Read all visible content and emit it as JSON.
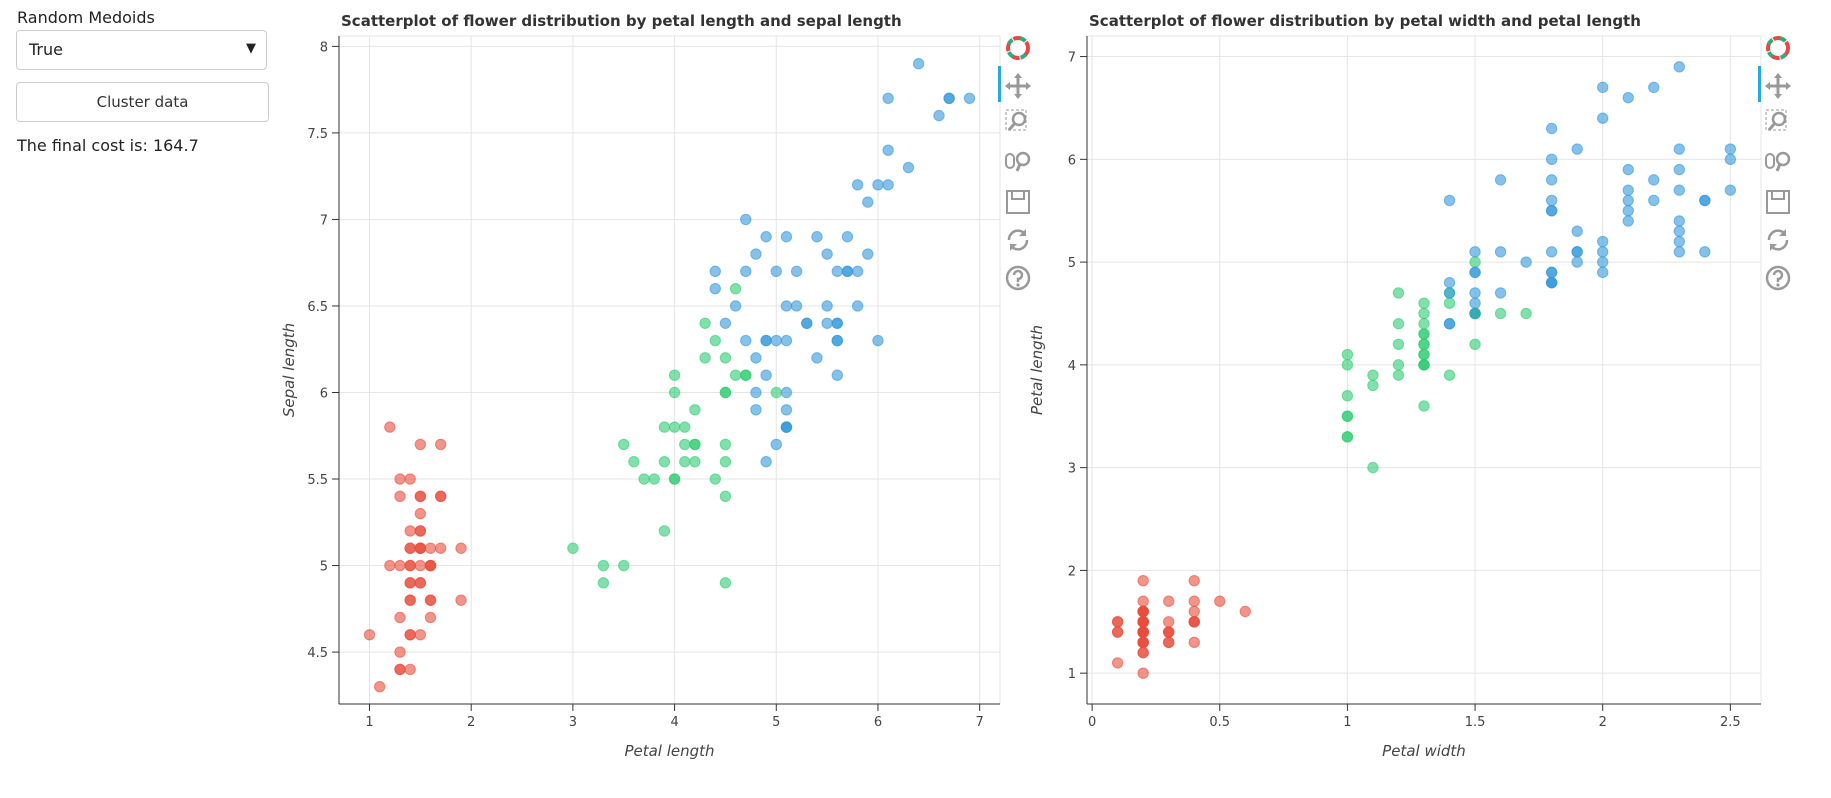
{
  "controls": {
    "select_label": "Random Medoids",
    "select_value": "True",
    "button": "Cluster data",
    "cost_text": "The final cost is: 164.7"
  },
  "chart_data": [
    {
      "type": "scatter",
      "title": "Scatterplot of flower distribution by petal length and sepal length",
      "x_label": "Petal length",
      "y_label": "Sepal length",
      "xlim": [
        0.7,
        7.2
      ],
      "ylim": [
        4.2,
        8.06
      ],
      "xticks": [
        1,
        2,
        3,
        4,
        5,
        6,
        7
      ],
      "yticks": [
        4.5,
        5,
        5.5,
        6,
        6.5,
        7,
        7.5,
        8
      ],
      "grid": true,
      "series": [
        {
          "color": "#e74c3c",
          "x": [
            1.4,
            1.4,
            1.3,
            1.5,
            1.4,
            1.7,
            1.4,
            1.5,
            1.4,
            1.5,
            1.5,
            1.6,
            1.4,
            1.1,
            1.2,
            1.5,
            1.3,
            1.4,
            1.7,
            1.5,
            1.7,
            1.5,
            1.0,
            1.7,
            1.9,
            1.6,
            1.6,
            1.5,
            1.4,
            1.6,
            1.6,
            1.5,
            1.5,
            1.4,
            1.5,
            1.2,
            1.3,
            1.4,
            1.3,
            1.5,
            1.3,
            1.3,
            1.3,
            1.6,
            1.9,
            1.4,
            1.6,
            1.4,
            1.5,
            1.4
          ],
          "y": [
            5.1,
            4.9,
            4.7,
            4.6,
            5.0,
            5.4,
            4.6,
            5.0,
            4.4,
            4.9,
            5.4,
            4.8,
            4.8,
            4.3,
            5.8,
            5.7,
            5.4,
            5.1,
            5.7,
            5.1,
            5.4,
            5.1,
            4.6,
            5.1,
            4.8,
            5.0,
            5.0,
            5.2,
            5.2,
            4.7,
            4.8,
            5.4,
            5.2,
            5.5,
            4.9,
            5.0,
            5.5,
            4.9,
            4.4,
            5.1,
            5.0,
            4.5,
            4.4,
            5.0,
            5.1,
            4.8,
            5.1,
            4.6,
            5.3,
            5.0
          ]
        },
        {
          "color": "#2ecc71",
          "x": [
            4.0,
            4.5,
            3.3,
            4.6,
            3.9,
            3.5,
            4.2,
            4.0,
            4.7,
            3.6,
            4.5,
            4.1,
            4.5,
            3.9,
            4.0,
            4.7,
            4.3,
            4.5,
            3.5,
            3.8,
            3.7,
            3.9,
            4.5,
            4.5,
            4.4,
            4.1,
            4.0,
            4.4,
            4.6,
            4.0,
            3.3,
            4.2,
            4.2,
            4.2,
            4.3,
            3.0,
            4.1,
            4.5,
            5.0
          ],
          "y": [
            5.5,
            5.7,
            4.9,
            6.6,
            5.2,
            5.0,
            5.9,
            6.0,
            6.1,
            5.6,
            5.6,
            5.8,
            6.2,
            5.6,
            6.1,
            6.1,
            6.4,
            6.0,
            5.7,
            5.5,
            5.5,
            5.8,
            5.4,
            6.0,
            6.3,
            5.6,
            5.5,
            5.5,
            6.1,
            5.8,
            5.0,
            5.6,
            5.7,
            5.7,
            6.2,
            5.1,
            5.7,
            4.9,
            6.0
          ]
        },
        {
          "color": "#3498db",
          "x": [
            4.7,
            4.5,
            4.9,
            4.6,
            4.7,
            4.4,
            4.8,
            4.9,
            4.4,
            4.8,
            5.0,
            5.1,
            4.7,
            6.0,
            5.1,
            5.9,
            5.6,
            5.8,
            6.6,
            6.3,
            5.8,
            6.1,
            5.1,
            5.3,
            5.5,
            5.0,
            5.1,
            5.3,
            5.5,
            6.7,
            6.9,
            5.7,
            4.9,
            6.7,
            4.9,
            5.7,
            6.0,
            4.8,
            4.9,
            5.6,
            5.8,
            6.1,
            6.4,
            5.6,
            5.1,
            5.6,
            6.1,
            5.6,
            5.5,
            4.8,
            5.4,
            5.6,
            5.1,
            5.1,
            5.9,
            5.7,
            5.2,
            5.0,
            5.2,
            5.4,
            5.1
          ],
          "y": [
            7.0,
            6.4,
            6.9,
            6.5,
            6.3,
            6.7,
            5.9,
            6.3,
            6.6,
            6.8,
            6.7,
            6.0,
            6.7,
            6.3,
            5.8,
            7.1,
            6.3,
            6.5,
            7.6,
            7.3,
            6.7,
            7.2,
            6.5,
            6.4,
            6.8,
            5.7,
            5.8,
            6.4,
            6.5,
            7.7,
            7.7,
            6.9,
            5.6,
            7.7,
            6.3,
            6.7,
            7.2,
            6.2,
            6.1,
            6.4,
            7.2,
            7.4,
            7.9,
            6.4,
            6.3,
            6.1,
            7.7,
            6.3,
            6.4,
            6.0,
            6.9,
            6.7,
            6.9,
            5.8,
            6.8,
            6.7,
            6.7,
            6.3,
            6.5,
            6.2,
            5.9
          ]
        }
      ]
    },
    {
      "type": "scatter",
      "title": "Scatterplot of flower distribution by petal width and petal length",
      "x_label": "Petal width",
      "y_label": "Petal length",
      "xlim": [
        -0.02,
        2.62
      ],
      "ylim": [
        0.7,
        7.2
      ],
      "xticks": [
        0,
        0.5,
        1,
        1.5,
        2,
        2.5
      ],
      "yticks": [
        1,
        2,
        3,
        4,
        5,
        6,
        7
      ],
      "grid": true,
      "series": [
        {
          "color": "#e74c3c",
          "x": [
            0.2,
            0.2,
            0.2,
            0.2,
            0.2,
            0.4,
            0.3,
            0.2,
            0.2,
            0.1,
            0.2,
            0.2,
            0.1,
            0.1,
            0.2,
            0.4,
            0.4,
            0.3,
            0.3,
            0.3,
            0.2,
            0.4,
            0.2,
            0.5,
            0.2,
            0.2,
            0.4,
            0.2,
            0.2,
            0.2,
            0.2,
            0.4,
            0.1,
            0.2,
            0.2,
            0.2,
            0.2,
            0.1,
            0.2,
            0.2,
            0.3,
            0.3,
            0.2,
            0.6,
            0.4,
            0.3,
            0.2,
            0.2,
            0.2,
            0.2
          ],
          "y": [
            1.4,
            1.4,
            1.3,
            1.5,
            1.4,
            1.7,
            1.4,
            1.5,
            1.4,
            1.5,
            1.5,
            1.6,
            1.4,
            1.1,
            1.2,
            1.5,
            1.3,
            1.4,
            1.7,
            1.5,
            1.7,
            1.5,
            1.0,
            1.7,
            1.9,
            1.6,
            1.6,
            1.5,
            1.4,
            1.6,
            1.6,
            1.5,
            1.5,
            1.4,
            1.5,
            1.2,
            1.3,
            1.4,
            1.3,
            1.5,
            1.3,
            1.3,
            1.3,
            1.6,
            1.9,
            1.4,
            1.6,
            1.4,
            1.5,
            1.4
          ]
        },
        {
          "color": "#2ecc71",
          "x": [
            1.3,
            1.3,
            1.0,
            1.3,
            1.4,
            1.0,
            1.5,
            1.0,
            1.4,
            1.3,
            1.5,
            1.0,
            1.5,
            1.1,
            1.3,
            1.2,
            1.3,
            1.5,
            1.0,
            1.1,
            1.0,
            1.2,
            1.5,
            1.6,
            1.3,
            1.3,
            1.3,
            1.2,
            1.4,
            1.2,
            1.0,
            1.3,
            1.2,
            1.3,
            1.3,
            1.1,
            1.3,
            1.7,
            1.5
          ],
          "y": [
            4.0,
            4.5,
            3.3,
            4.6,
            3.9,
            3.5,
            4.2,
            4.0,
            4.7,
            3.6,
            4.5,
            4.1,
            4.5,
            3.9,
            4.0,
            4.7,
            4.3,
            4.5,
            3.5,
            3.8,
            3.7,
            3.9,
            4.5,
            4.5,
            4.4,
            4.1,
            4.0,
            4.4,
            4.6,
            4.0,
            3.3,
            4.2,
            4.2,
            4.2,
            4.3,
            3.0,
            4.1,
            4.5,
            5.0
          ]
        },
        {
          "color": "#3498db",
          "x": [
            1.4,
            1.5,
            1.5,
            1.5,
            1.6,
            1.4,
            1.8,
            1.5,
            1.4,
            1.4,
            1.7,
            1.6,
            1.5,
            2.5,
            1.9,
            2.1,
            1.8,
            2.2,
            2.1,
            1.8,
            1.8,
            2.5,
            2.0,
            1.9,
            2.1,
            2.0,
            2.4,
            2.3,
            1.8,
            2.2,
            2.3,
            2.3,
            2.0,
            2.0,
            1.8,
            2.1,
            1.8,
            1.8,
            1.8,
            2.1,
            1.6,
            1.9,
            2.0,
            2.2,
            1.5,
            1.4,
            2.3,
            2.4,
            1.8,
            1.8,
            2.1,
            2.4,
            2.3,
            1.9,
            2.3,
            2.5,
            2.3,
            1.9,
            2.0,
            2.3,
            1.8
          ],
          "y": [
            4.7,
            4.5,
            4.9,
            4.6,
            4.7,
            4.4,
            4.8,
            4.9,
            4.4,
            4.8,
            5.0,
            5.1,
            4.7,
            6.0,
            5.1,
            5.9,
            5.6,
            5.8,
            6.6,
            6.3,
            5.8,
            6.1,
            5.1,
            5.3,
            5.5,
            5.0,
            5.1,
            5.3,
            5.5,
            6.7,
            6.9,
            5.7,
            4.9,
            6.7,
            4.9,
            5.7,
            6.0,
            4.8,
            4.9,
            5.6,
            5.8,
            6.1,
            6.4,
            5.6,
            5.1,
            5.6,
            6.1,
            5.6,
            5.5,
            4.8,
            5.4,
            5.6,
            5.1,
            5.1,
            5.9,
            5.7,
            5.2,
            5.0,
            5.2,
            5.4,
            5.1
          ]
        }
      ]
    }
  ]
}
